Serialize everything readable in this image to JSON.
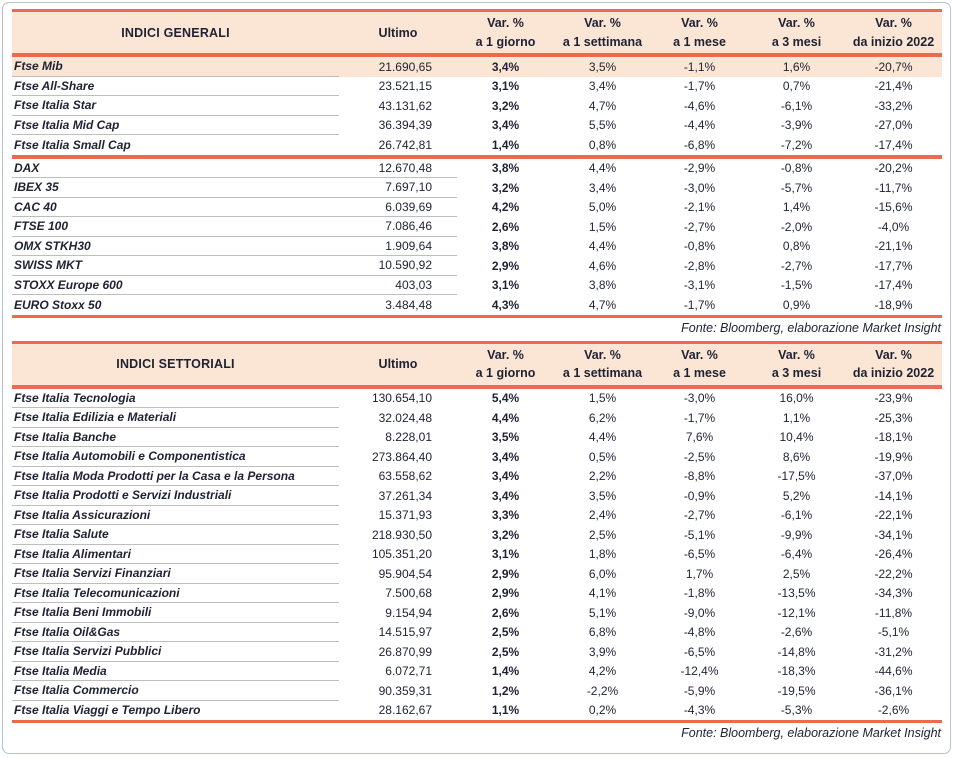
{
  "colors": {
    "accent": "#ed6a50",
    "header_bg": "#fbe5d4",
    "text": "#1e2233",
    "separator": "#bcbec0",
    "frame_border": "#b6c2cd"
  },
  "tables": [
    {
      "title": "INDICI GENERALI",
      "ultimo_label": "Ultimo",
      "var_headers": [
        {
          "line1": "Var. %",
          "line2": "a 1 giorno"
        },
        {
          "line1": "Var. %",
          "line2": "a 1 settimana"
        },
        {
          "line1": "Var. %",
          "line2": "a 1 mese"
        },
        {
          "line1": "Var. %",
          "line2": "a 3 mesi"
        },
        {
          "line1": "Var. %",
          "line2": "da inizio 2022"
        }
      ],
      "groups": [
        {
          "wide_separators": false,
          "rows": [
            {
              "label": "Ftse Mib",
              "ultimo": "21.690,65",
              "vars": [
                "3,4%",
                "3,5%",
                "-1,1%",
                "1,6%",
                "-20,7%"
              ],
              "highlight": true
            },
            {
              "label": "Ftse All-Share",
              "ultimo": "23.521,15",
              "vars": [
                "3,1%",
                "3,4%",
                "-1,7%",
                "0,7%",
                "-21,4%"
              ],
              "highlight": false
            },
            {
              "label": "Ftse Italia Star",
              "ultimo": "43.131,62",
              "vars": [
                "3,2%",
                "4,7%",
                "-4,6%",
                "-6,1%",
                "-33,2%"
              ],
              "highlight": false
            },
            {
              "label": "Ftse Italia Mid Cap",
              "ultimo": "36.394,39",
              "vars": [
                "3,4%",
                "5,5%",
                "-4,4%",
                "-3,9%",
                "-27,0%"
              ],
              "highlight": false
            },
            {
              "label": "Ftse Italia Small Cap",
              "ultimo": "26.742,81",
              "vars": [
                "1,4%",
                "0,8%",
                "-6,8%",
                "-7,2%",
                "-17,4%"
              ],
              "highlight": false
            }
          ]
        },
        {
          "wide_separators": true,
          "rows": [
            {
              "label": "DAX",
              "ultimo": "12.670,48",
              "vars": [
                "3,8%",
                "4,4%",
                "-2,9%",
                "-0,8%",
                "-20,2%"
              ],
              "highlight": false
            },
            {
              "label": "IBEX 35",
              "ultimo": "7.697,10",
              "vars": [
                "3,2%",
                "3,4%",
                "-3,0%",
                "-5,7%",
                "-11,7%"
              ],
              "highlight": false
            },
            {
              "label": "CAC 40",
              "ultimo": "6.039,69",
              "vars": [
                "4,2%",
                "5,0%",
                "-2,1%",
                "1,4%",
                "-15,6%"
              ],
              "highlight": false
            },
            {
              "label": "FTSE 100",
              "ultimo": "7.086,46",
              "vars": [
                "2,6%",
                "1,5%",
                "-2,7%",
                "-2,0%",
                "-4,0%"
              ],
              "highlight": false
            },
            {
              "label": "OMX STKH30",
              "ultimo": "1.909,64",
              "vars": [
                "3,8%",
                "4,4%",
                "-0,8%",
                "0,8%",
                "-21,1%"
              ],
              "highlight": false
            },
            {
              "label": "SWISS MKT",
              "ultimo": "10.590,92",
              "vars": [
                "2,9%",
                "4,6%",
                "-2,8%",
                "-2,7%",
                "-17,7%"
              ],
              "highlight": false
            },
            {
              "label": "STOXX Europe 600",
              "ultimo": "403,03",
              "vars": [
                "3,1%",
                "3,8%",
                "-3,1%",
                "-1,5%",
                "-17,4%"
              ],
              "highlight": false
            },
            {
              "label": "EURO Stoxx 50",
              "ultimo": "3.484,48",
              "vars": [
                "4,3%",
                "4,7%",
                "-1,7%",
                "0,9%",
                "-18,9%"
              ],
              "highlight": false
            }
          ]
        }
      ],
      "fonte": "Fonte: Bloomberg, elaborazione Market Insight"
    },
    {
      "title": "INDICI SETTORIALI",
      "ultimo_label": "Ultimo",
      "var_headers": [
        {
          "line1": "Var. %",
          "line2": "a 1 giorno"
        },
        {
          "line1": "Var. %",
          "line2": "a 1 settimana"
        },
        {
          "line1": "Var. %",
          "line2": "a 1 mese"
        },
        {
          "line1": "Var. %",
          "line2": "a 3 mesi"
        },
        {
          "line1": "Var. %",
          "line2": "da inizio 2022"
        }
      ],
      "groups": [
        {
          "wide_separators": false,
          "rows": [
            {
              "label": "Ftse Italia Tecnologia",
              "ultimo": "130.654,10",
              "vars": [
                "5,4%",
                "1,5%",
                "-3,0%",
                "16,0%",
                "-23,9%"
              ],
              "highlight": false
            },
            {
              "label": "Ftse Italia Edilizia e Materiali",
              "ultimo": "32.024,48",
              "vars": [
                "4,4%",
                "6,2%",
                "-1,7%",
                "1,1%",
                "-25,3%"
              ],
              "highlight": false
            },
            {
              "label": "Ftse Italia Banche",
              "ultimo": "8.228,01",
              "vars": [
                "3,5%",
                "4,4%",
                "7,6%",
                "10,4%",
                "-18,1%"
              ],
              "highlight": false
            },
            {
              "label": "Ftse Italia Automobili e Componentistica",
              "ultimo": "273.864,40",
              "vars": [
                "3,4%",
                "0,5%",
                "-2,5%",
                "8,6%",
                "-19,9%"
              ],
              "highlight": false
            },
            {
              "label": "Ftse Italia Moda Prodotti per la Casa e la Persona",
              "ultimo": "63.558,62",
              "vars": [
                "3,4%",
                "2,2%",
                "-8,8%",
                "-17,5%",
                "-37,0%"
              ],
              "highlight": false
            },
            {
              "label": "Ftse Italia Prodotti e Servizi Industriali",
              "ultimo": "37.261,34",
              "vars": [
                "3,4%",
                "3,5%",
                "-0,9%",
                "5,2%",
                "-14,1%"
              ],
              "highlight": false
            },
            {
              "label": "Ftse Italia Assicurazioni",
              "ultimo": "15.371,93",
              "vars": [
                "3,3%",
                "2,4%",
                "-2,7%",
                "-6,1%",
                "-22,1%"
              ],
              "highlight": false
            },
            {
              "label": "Ftse Italia Salute",
              "ultimo": "218.930,50",
              "vars": [
                "3,2%",
                "2,5%",
                "-5,1%",
                "-9,9%",
                "-34,1%"
              ],
              "highlight": false
            },
            {
              "label": "Ftse Italia Alimentari",
              "ultimo": "105.351,20",
              "vars": [
                "3,1%",
                "1,8%",
                "-6,5%",
                "-6,4%",
                "-26,4%"
              ],
              "highlight": false
            },
            {
              "label": "Ftse Italia Servizi Finanziari",
              "ultimo": "95.904,54",
              "vars": [
                "2,9%",
                "6,0%",
                "1,7%",
                "2,5%",
                "-22,2%"
              ],
              "highlight": false
            },
            {
              "label": "Ftse Italia Telecomunicazioni",
              "ultimo": "7.500,68",
              "vars": [
                "2,9%",
                "4,1%",
                "-1,8%",
                "-13,5%",
                "-34,3%"
              ],
              "highlight": false
            },
            {
              "label": "Ftse Italia Beni Immobili",
              "ultimo": "9.154,94",
              "vars": [
                "2,6%",
                "5,1%",
                "-9,0%",
                "-12,1%",
                "-11,8%"
              ],
              "highlight": false
            },
            {
              "label": "Ftse Italia Oil&Gas",
              "ultimo": "14.515,97",
              "vars": [
                "2,5%",
                "6,8%",
                "-4,8%",
                "-2,6%",
                "-5,1%"
              ],
              "highlight": false
            },
            {
              "label": "Ftse Italia Servizi Pubblici",
              "ultimo": "26.870,99",
              "vars": [
                "2,5%",
                "3,9%",
                "-6,5%",
                "-14,8%",
                "-31,2%"
              ],
              "highlight": false
            },
            {
              "label": "Ftse Italia Media",
              "ultimo": "6.072,71",
              "vars": [
                "1,4%",
                "4,2%",
                "-12,4%",
                "-18,3%",
                "-44,6%"
              ],
              "highlight": false
            },
            {
              "label": "Ftse Italia Commercio",
              "ultimo": "90.359,31",
              "vars": [
                "1,2%",
                "-2,2%",
                "-5,9%",
                "-19,5%",
                "-36,1%"
              ],
              "highlight": false
            },
            {
              "label": "Ftse Italia Viaggi e Tempo Libero",
              "ultimo": "28.162,67",
              "vars": [
                "1,1%",
                "0,2%",
                "-4,3%",
                "-5,3%",
                "-2,6%"
              ],
              "highlight": false
            }
          ]
        }
      ],
      "fonte": "Fonte: Bloomberg, elaborazione Market Insight"
    }
  ]
}
